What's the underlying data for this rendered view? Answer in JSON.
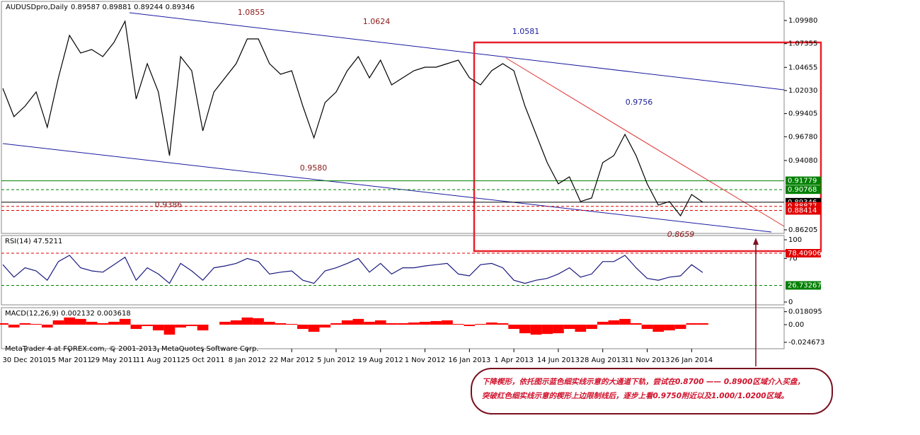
{
  "chart_data": [
    {
      "type": "line",
      "title": "AUDUSDpro,Daily",
      "quote": "0.89587 0.89881 0.89244 0.89346",
      "categories": [
        null,
        null,
        "30 Dec 2010",
        null,
        null,
        null,
        "15 Mar 2011",
        null,
        null,
        null,
        "29 May 2011",
        null,
        null,
        null,
        "11 Aug 2011",
        null,
        null,
        null,
        "25 Oct 2011",
        null,
        null,
        null,
        "8 Jan 2012",
        null,
        null,
        null,
        "22 Mar 2012",
        null,
        null,
        null,
        "5 Jun 2012",
        null,
        null,
        null,
        "19 Aug 2012",
        null,
        null,
        null,
        "1 Nov 2012",
        null,
        null,
        null,
        "16 Jan 2013",
        null,
        null,
        null,
        "1 Apr 2013",
        null,
        null,
        null,
        "14 Jun 2013",
        null,
        null,
        null,
        "28 Aug 2013",
        null,
        null,
        null,
        "11 Nov 2013",
        null,
        null,
        null,
        "26 Jan 2014",
        null
      ],
      "values": [
        1.0227,
        0.9906,
        1.0026,
        1.0187,
        0.9785,
        1.0347,
        1.0829,
        1.0629,
        1.0669,
        1.0588,
        1.0749,
        1.099,
        1.0106,
        1.0508,
        1.0187,
        0.9464,
        1.0588,
        1.0428,
        0.9745,
        1.0187,
        1.0347,
        1.0508,
        1.0789,
        1.0789,
        1.0508,
        1.0388,
        1.0428,
        1.0026,
        0.9665,
        1.0066,
        1.0187,
        1.0428,
        1.0588,
        1.0347,
        1.0548,
        1.0267,
        1.0347,
        1.0428,
        1.0468,
        1.0468,
        1.0508,
        1.0548,
        1.0347,
        1.0267,
        1.0428,
        1.0508,
        1.0428,
        1.0026,
        0.9705,
        0.9384,
        0.9143,
        0.9223,
        0.8942,
        0.8982,
        0.9384,
        0.9464,
        0.9705,
        0.9464,
        0.9143,
        0.8902,
        0.8942,
        0.8781,
        0.9022,
        0.8934
      ],
      "color": "#000000",
      "ylim": [
        0.858,
        1.1231
      ],
      "yticks": [
        {
          "value": 1.0998,
          "label": "1.09980"
        },
        {
          "value": 1.07355,
          "label": "1.07355"
        },
        1.04655,
        {
          "value": 1.0203,
          "label": "1.02030"
        },
        {
          "value": 0.99405,
          "label": "0.99405"
        },
        {
          "value": 0.9678,
          "label": "0.96780"
        },
        {
          "value": 0.9408,
          "label": "0.94080"
        },
        {
          "value": 0.86205,
          "label": "0.86205"
        }
      ],
      "levels": [
        {
          "value": 0.91779,
          "color": "#008000",
          "dash": false
        },
        {
          "value": 0.90768,
          "color": "#008000",
          "dash": true
        },
        {
          "value": 0.89346,
          "color": "#000000",
          "dash": false
        },
        {
          "value": 0.88877,
          "color": "#e00000",
          "dash": true
        },
        {
          "value": 0.88414,
          "color": "#e00000",
          "dash": true
        }
      ],
      "annotations": [
        {
          "text": "1.0855",
          "color": "#8b1a1a"
        },
        {
          "text": "1.0624",
          "color": "#8b1a1a"
        },
        {
          "text": "1.0581",
          "color": "#2020a0"
        },
        {
          "text": "0.9756",
          "color": "#2020a0"
        },
        {
          "text": "0.9580",
          "color": "#8b1a1a"
        },
        {
          "text": "0.9386",
          "color": "#8b1a1a"
        },
        {
          "text": "0.8659",
          "color": "#8b1a1a"
        }
      ],
      "callout": [
        "下降楔形，依托图示蓝色细实线示意的大通道下轨，尝试在0.8700 —— 0.8900区域介入买盘，",
        "突破红色细实线示意的楔形上边限制线后，逐步上看0.9750附近以及1.000/1.0200区域。"
      ]
    },
    {
      "type": "line",
      "title": "RSI(14) 47.5211",
      "values": [
        60,
        40,
        55,
        50,
        35,
        65,
        75,
        55,
        50,
        48,
        60,
        72,
        35,
        55,
        45,
        30,
        62,
        50,
        35,
        55,
        58,
        62,
        70,
        65,
        45,
        48,
        50,
        35,
        30,
        50,
        55,
        62,
        70,
        48,
        62,
        45,
        55,
        55,
        58,
        60,
        62,
        45,
        42,
        60,
        62,
        55,
        35,
        30,
        35,
        38,
        45,
        55,
        40,
        45,
        65,
        65,
        75,
        55,
        38,
        35,
        40,
        42,
        60,
        47.5
      ],
      "color": "#1a1a80",
      "ylim": [
        0,
        100
      ],
      "yticks": [
        100,
        70,
        0
      ],
      "levels": [
        {
          "value": 78.40906,
          "color": "#e00000",
          "dash": true
        },
        {
          "value": 26.73267,
          "color": "#008000",
          "dash": true
        }
      ]
    },
    {
      "type": "bar",
      "title": "MACD(12,26,9) 0.002132 0.003618",
      "footer": "MetaTrader 4 at FOREX.com, © 2001-2013, MetaQuotes Software Corp.",
      "values": [
        0.002,
        -0.004,
        0.002,
        0.001,
        -0.004,
        0.006,
        0.01,
        0.008,
        0.004,
        0.002,
        0.004,
        0.008,
        -0.006,
        -0.002,
        -0.008,
        -0.014,
        -0.004,
        -0.002,
        -0.008,
        0.0,
        0.004,
        0.006,
        0.01,
        0.009,
        0.004,
        0.002,
        0.001,
        -0.006,
        -0.01,
        -0.004,
        0.002,
        0.006,
        0.008,
        0.004,
        0.006,
        0.002,
        0.002,
        0.003,
        0.004,
        0.005,
        0.006,
        0.001,
        -0.002,
        0.001,
        0.003,
        0.002,
        -0.006,
        -0.012,
        -0.014,
        -0.013,
        -0.012,
        -0.006,
        -0.01,
        -0.006,
        0.004,
        0.006,
        0.008,
        0.002,
        -0.006,
        -0.01,
        -0.008,
        -0.006,
        0.002,
        0.002
      ],
      "color": "#ff0000",
      "ylim": [
        -0.0326,
        0.0227
      ],
      "yticks": [
        0.018095,
        {
          "value": 0,
          "label": "0.00"
        },
        -0.024673
      ]
    }
  ]
}
